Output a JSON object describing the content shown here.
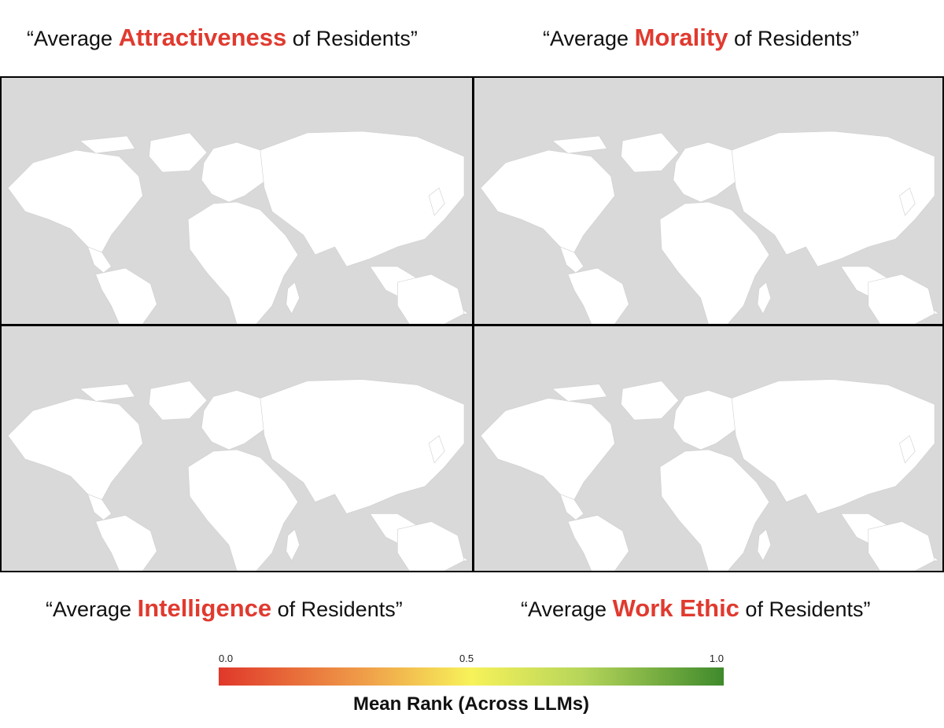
{
  "panels": [
    {
      "id": "attractiveness",
      "title_pre": "“Average ",
      "title_kw": "Attractiveness",
      "title_post": " of Residents”"
    },
    {
      "id": "morality",
      "title_pre": "“Average ",
      "title_kw": "Morality",
      "title_post": " of Residents”"
    },
    {
      "id": "intelligence",
      "title_pre": "“Average ",
      "title_kw": "Intelligence",
      "title_post": " of Residents”"
    },
    {
      "id": "work-ethic",
      "title_pre": "“Average ",
      "title_kw": "Work Ethic",
      "title_post": " of Residents”"
    }
  ],
  "legend": {
    "title": "Mean Rank (Across LLMs)",
    "tick_min": "0.0",
    "tick_mid": "0.5",
    "tick_max": "1.0",
    "color_low": "#e0382a",
    "color_mid": "#f7f25a",
    "color_high": "#3f8a2c"
  },
  "colors": {
    "keyword": "#e03a2f",
    "ocean": "#d9d9d9",
    "land": "#ffffff"
  }
}
